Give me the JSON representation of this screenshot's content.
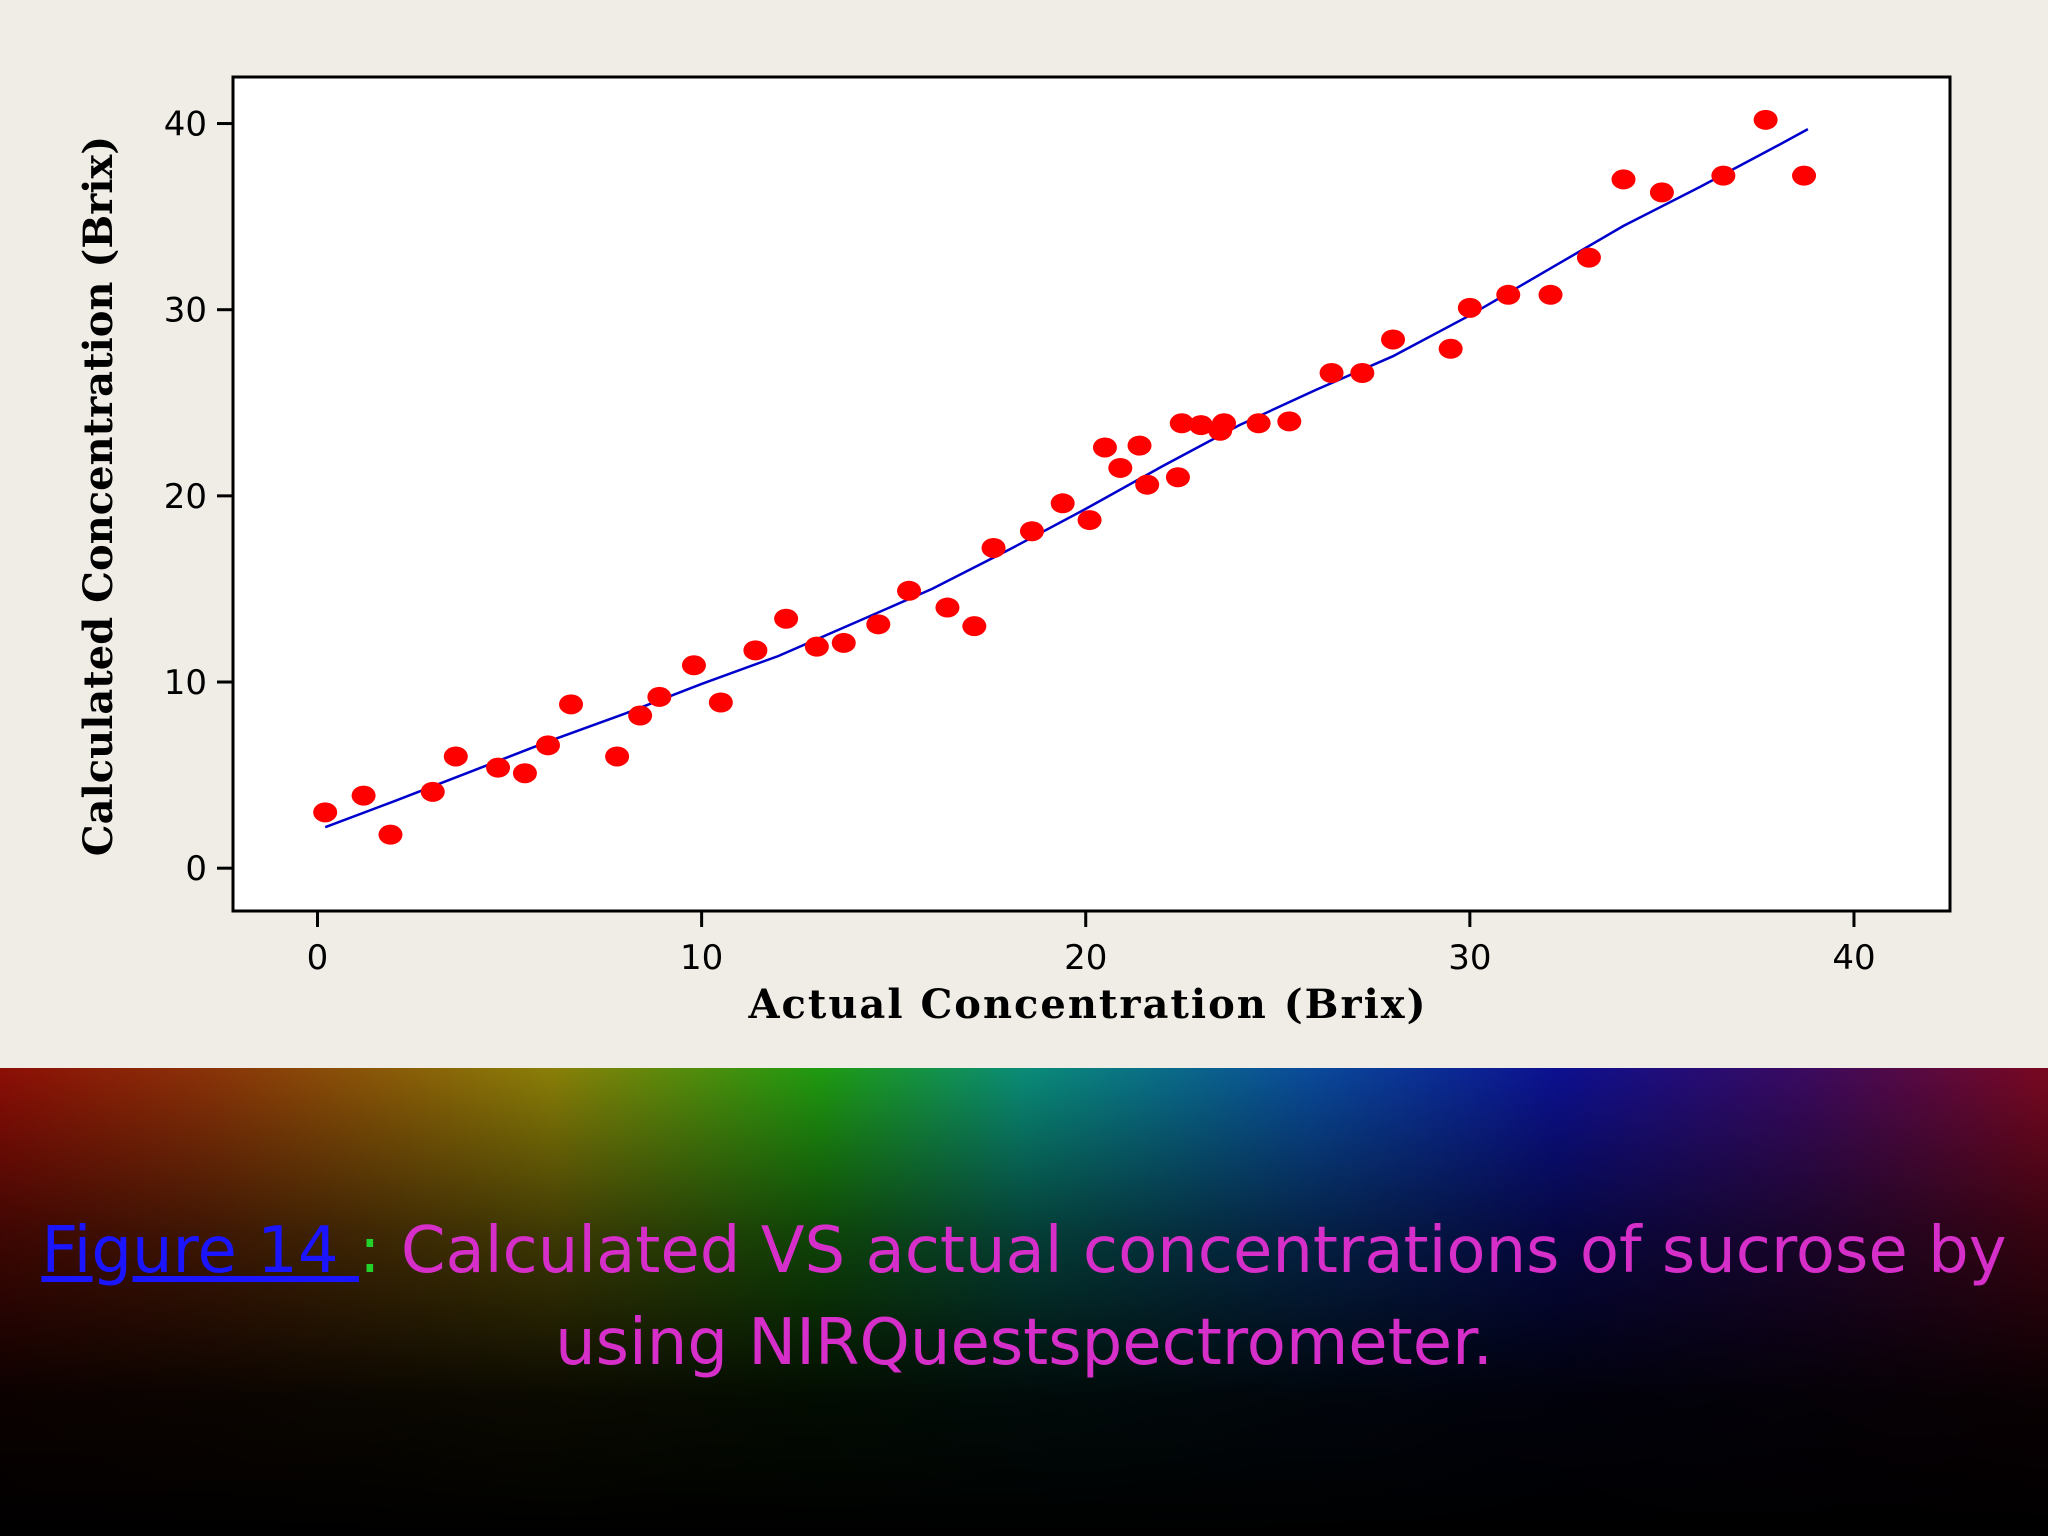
{
  "colors": {
    "point": "#ff0000",
    "fit_line": "#0000cc",
    "caption_text": "#d62ec8",
    "caption_figure": "#1a14ff",
    "caption_colon": "#22d12a",
    "panel_bg": "#f0ece6"
  },
  "caption": {
    "figure_label": "Figure 14 ",
    "separator": ":",
    "line1": " Calculated VS actual concentrations of sucrose by",
    "line2": "using NIRQuestspectrometer."
  },
  "chart_data": {
    "type": "scatter",
    "xlabel": "Actual Concentration (Brix)",
    "ylabel": "Calculated Concentration (Brix)",
    "xlim": [
      -2.2,
      42.5
    ],
    "ylim": [
      -2.3,
      42.5
    ],
    "x_ticks": [
      0,
      10,
      20,
      30,
      40
    ],
    "y_ticks": [
      0,
      10,
      20,
      30,
      40
    ],
    "grid": false,
    "series": [
      {
        "kind": "points",
        "x": [
          0.2,
          1.2,
          1.9,
          3.0,
          3.6,
          4.7,
          5.4,
          6.0,
          6.6,
          7.8,
          8.4,
          8.9,
          9.8,
          10.5,
          11.4,
          12.2,
          13.0,
          13.7,
          14.6,
          15.4,
          16.4,
          17.1,
          17.6,
          18.6,
          19.4,
          20.1,
          20.5,
          20.9,
          21.4,
          21.6,
          22.4,
          22.5,
          23.0,
          23.5,
          23.6,
          24.5,
          25.3,
          26.4,
          27.2,
          28.0,
          29.5,
          30.0,
          31.0,
          32.1,
          33.1,
          34.0,
          35.0,
          36.6,
          37.7,
          38.7
        ],
        "y": [
          3.0,
          3.9,
          1.8,
          4.1,
          6.0,
          5.4,
          5.1,
          6.6,
          8.8,
          6.0,
          8.2,
          9.2,
          10.9,
          8.9,
          11.7,
          13.4,
          11.9,
          12.1,
          13.1,
          14.9,
          14.0,
          13.0,
          17.2,
          18.1,
          19.6,
          18.7,
          22.6,
          21.5,
          22.7,
          20.6,
          21.0,
          23.9,
          23.8,
          23.5,
          23.9,
          23.9,
          24.0,
          26.6,
          26.6,
          28.4,
          27.9,
          30.1,
          30.8,
          30.8,
          32.8,
          37.0,
          36.3,
          37.2,
          40.2,
          37.2
        ]
      },
      {
        "kind": "fit-line",
        "x": [
          0.2,
          2.0,
          4.0,
          6.0,
          8.0,
          10.0,
          12.0,
          14.0,
          16.0,
          18.0,
          20.0,
          22.0,
          24.0,
          26.0,
          28.0,
          30.0,
          32.0,
          34.0,
          36.0,
          38.0,
          38.8
        ],
        "y": [
          2.2,
          3.6,
          5.2,
          6.8,
          8.3,
          9.9,
          11.4,
          13.2,
          15.0,
          17.1,
          19.3,
          21.6,
          23.8,
          25.7,
          27.5,
          29.7,
          32.1,
          34.5,
          36.6,
          38.8,
          39.7
        ]
      }
    ]
  }
}
